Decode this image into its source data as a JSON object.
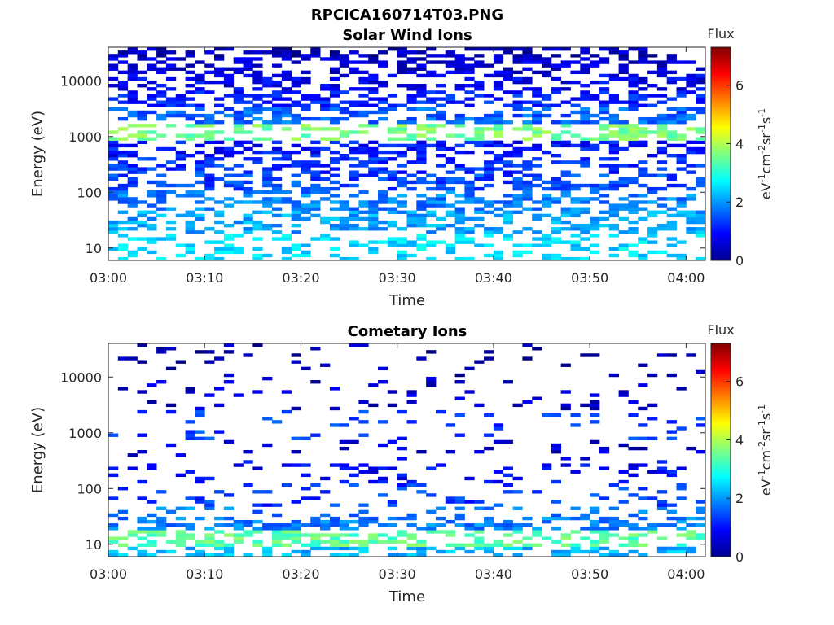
{
  "figure_title": "RPCICA160714T03.PNG",
  "chart_data": [
    {
      "type": "heatmap",
      "title": "Solar Wind Ions",
      "xlabel": "Time",
      "ylabel": "Energy (eV)",
      "x_ticks": [
        "03:00",
        "03:10",
        "03:20",
        "03:30",
        "03:40",
        "03:50",
        "04:00"
      ],
      "x_range": [
        "03:00",
        "04:02"
      ],
      "y_scale": "log",
      "y_ticks": [
        "10",
        "100",
        "1000",
        "10000"
      ],
      "y_range": [
        6,
        40000
      ],
      "colorbar": {
        "title": "Flux",
        "label": "eV-1cm-2sr-1s-1",
        "ticks": [
          "0",
          "2",
          "4",
          "6"
        ],
        "range": [
          0,
          7.3
        ]
      },
      "summary": [
        {
          "energy_eV": 40000,
          "flux": 0.4
        },
        {
          "energy_eV": 20000,
          "flux": 0.6
        },
        {
          "energy_eV": 10000,
          "flux": 0.8
        },
        {
          "energy_eV": 5000,
          "flux": 1.1
        },
        {
          "energy_eV": 2500,
          "flux": 1.6
        },
        {
          "energy_eV": 1200,
          "flux": 3.6
        },
        {
          "energy_eV": 600,
          "flux": 1.0
        },
        {
          "energy_eV": 300,
          "flux": 1.2
        },
        {
          "energy_eV": 150,
          "flux": 1.4
        },
        {
          "energy_eV": 70,
          "flux": 1.8
        },
        {
          "energy_eV": 30,
          "flux": 2.1
        },
        {
          "energy_eV": 10,
          "flux": 2.5
        }
      ]
    },
    {
      "type": "heatmap",
      "title": "Cometary Ions",
      "xlabel": "Time",
      "ylabel": "Energy (eV)",
      "x_ticks": [
        "03:00",
        "03:10",
        "03:20",
        "03:30",
        "03:40",
        "03:50",
        "04:00"
      ],
      "x_range": [
        "03:00",
        "04:02"
      ],
      "y_scale": "log",
      "y_ticks": [
        "10",
        "100",
        "1000",
        "10000"
      ],
      "y_range": [
        6,
        40000
      ],
      "colorbar": {
        "title": "Flux",
        "label": "eV-1cm-2sr-1s-1",
        "ticks": [
          "0",
          "2",
          "4",
          "6"
        ],
        "range": [
          0,
          7.3
        ]
      },
      "summary": [
        {
          "energy_eV": 20000,
          "flux": 0.3
        },
        {
          "energy_eV": 5000,
          "flux": 0.5
        },
        {
          "energy_eV": 1200,
          "flux": 1.3
        },
        {
          "energy_eV": 500,
          "flux": 0.6
        },
        {
          "energy_eV": 200,
          "flux": 0.9
        },
        {
          "energy_eV": 80,
          "flux": 1.3
        },
        {
          "energy_eV": 30,
          "flux": 1.8
        },
        {
          "energy_eV": 12,
          "flux": 3.4
        },
        {
          "energy_eV": 7,
          "flux": 2.2
        }
      ]
    }
  ]
}
